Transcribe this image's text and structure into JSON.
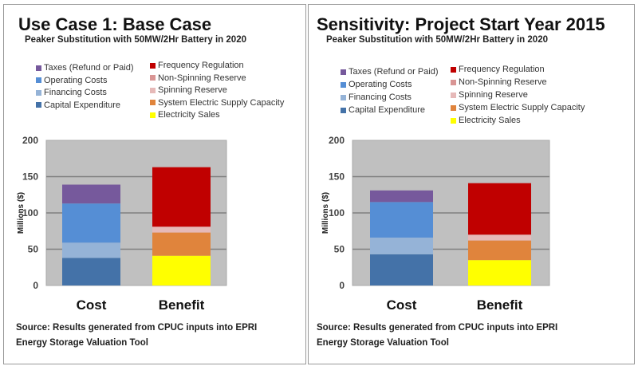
{
  "legend_costs": [
    "Taxes (Refund or Paid)",
    "Operating Costs",
    "Financing Costs",
    "Capital Expenditure"
  ],
  "legend_benefits": [
    "Frequency Regulation",
    "Non-Spinning Reserve",
    "Spinning Reserve",
    "System Electric Supply Capacity",
    "Electricity Sales"
  ],
  "colors": {
    "Taxes (Refund or Paid)": "#76599C",
    "Operating Costs": "#558ED5",
    "Financing Costs": "#95B3D7",
    "Capital Expenditure": "#4472A8",
    "Frequency Regulation": "#C00000",
    "Non-Spinning Reserve": "#D99594",
    "Spinning Reserve": "#E6B9B8",
    "System Electric Supply Capacity": "#E0843C",
    "Electricity Sales": "#FFFF00"
  },
  "panels": [
    {
      "title": "Use Case 1: Base Case",
      "subtitle": "Peaker Substitution with  50MW/2Hr Battery in 2020",
      "source": "Source: Results generated from CPUC inputs into EPRI Energy Storage Valuation Tool"
    },
    {
      "title": "Sensitivity: Project Start Year 2015",
      "subtitle": "Peaker Substitution with  50MW/2Hr Battery in 2020",
      "source": "Source: Results generated from CPUC inputs into EPRI Energy Storage Valuation Tool"
    }
  ],
  "chart_data": [
    {
      "type": "bar",
      "stacked": true,
      "title": "Use Case 1: Base Case",
      "ylabel": "Millions ($)",
      "ylim": [
        0,
        200
      ],
      "yticks": [
        0,
        50,
        100,
        150,
        200
      ],
      "grid": true,
      "categories": [
        "Cost",
        "Benefit"
      ],
      "series": [
        {
          "name": "Capital Expenditure",
          "values": [
            38,
            0
          ]
        },
        {
          "name": "Financing Costs",
          "values": [
            21,
            0
          ]
        },
        {
          "name": "Operating Costs",
          "values": [
            54,
            0
          ]
        },
        {
          "name": "Taxes (Refund or Paid)",
          "values": [
            26,
            0
          ]
        },
        {
          "name": "Electricity Sales",
          "values": [
            0,
            41
          ]
        },
        {
          "name": "System Electric Supply Capacity",
          "values": [
            0,
            32
          ]
        },
        {
          "name": "Spinning Reserve",
          "values": [
            0,
            8
          ]
        },
        {
          "name": "Non-Spinning Reserve",
          "values": [
            0,
            0
          ]
        },
        {
          "name": "Frequency Regulation",
          "values": [
            0,
            82
          ]
        }
      ]
    },
    {
      "type": "bar",
      "stacked": true,
      "title": "Sensitivity: Project Start Year 2015",
      "ylabel": "Millions ($)",
      "ylim": [
        0,
        200
      ],
      "yticks": [
        0,
        50,
        100,
        150,
        200
      ],
      "grid": true,
      "categories": [
        "Cost",
        "Benefit"
      ],
      "series": [
        {
          "name": "Capital Expenditure",
          "values": [
            43,
            0
          ]
        },
        {
          "name": "Financing Costs",
          "values": [
            23,
            0
          ]
        },
        {
          "name": "Operating Costs",
          "values": [
            49,
            0
          ]
        },
        {
          "name": "Taxes (Refund or Paid)",
          "values": [
            16,
            0
          ]
        },
        {
          "name": "Electricity Sales",
          "values": [
            0,
            35
          ]
        },
        {
          "name": "System Electric Supply Capacity",
          "values": [
            0,
            27
          ]
        },
        {
          "name": "Spinning Reserve",
          "values": [
            0,
            8
          ]
        },
        {
          "name": "Non-Spinning Reserve",
          "values": [
            0,
            0
          ]
        },
        {
          "name": "Frequency Regulation",
          "values": [
            0,
            71
          ]
        }
      ]
    }
  ]
}
